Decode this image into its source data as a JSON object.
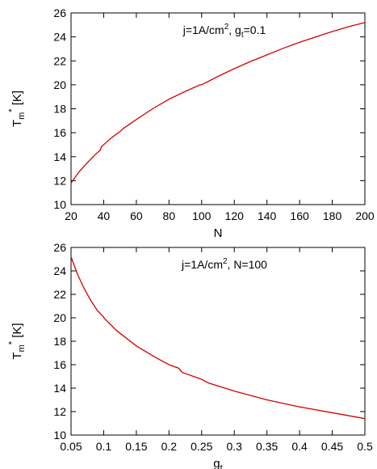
{
  "chart_data": [
    {
      "type": "line",
      "xlabel": "N",
      "ylabel": {
        "base": "T",
        "sub": "m",
        "sup": "*",
        "unit": "[K]"
      },
      "xlim": [
        20,
        200
      ],
      "ylim": [
        10,
        26
      ],
      "xticks": [
        20,
        40,
        60,
        80,
        100,
        120,
        140,
        160,
        180,
        200
      ],
      "yticks": [
        10,
        12,
        14,
        16,
        18,
        20,
        22,
        24,
        26
      ],
      "xtick_labels": [
        "20",
        "40",
        "60",
        "80",
        "100",
        "120",
        "140",
        "160",
        "180",
        "200"
      ],
      "ytick_labels": [
        "10",
        "12",
        "14",
        "16",
        "18",
        "20",
        "22",
        "24",
        "26"
      ],
      "annotation": {
        "pre": "j=1A/cm",
        "sup": "2",
        "mid": ", g",
        "sub": "t",
        "post": "=0.1"
      },
      "color": "#d40000",
      "series": [
        {
          "x": [
            20,
            25,
            30,
            35,
            38,
            38.5,
            40,
            45,
            50,
            52,
            60,
            70,
            80,
            90,
            99,
            100,
            110,
            120,
            130,
            140,
            150,
            160,
            170,
            180,
            190,
            200
          ],
          "y": [
            11.8,
            12.75,
            13.5,
            14.2,
            14.55,
            14.8,
            15.0,
            15.6,
            16.1,
            16.35,
            17.1,
            18.0,
            18.8,
            19.45,
            20.0,
            20.0,
            20.7,
            21.35,
            21.95,
            22.5,
            23.05,
            23.55,
            24.0,
            24.45,
            24.85,
            25.2
          ]
        }
      ]
    },
    {
      "type": "line",
      "xlabel": {
        "base": "g",
        "sub": "t"
      },
      "ylabel": {
        "base": "T",
        "sub": "m",
        "sup": "*",
        "unit": "[K]"
      },
      "xlim": [
        0.05,
        0.5
      ],
      "ylim": [
        10,
        26
      ],
      "xticks": [
        0.05,
        0.1,
        0.15,
        0.2,
        0.25,
        0.3,
        0.35,
        0.4,
        0.45,
        0.5
      ],
      "yticks": [
        10,
        12,
        14,
        16,
        18,
        20,
        22,
        24,
        26
      ],
      "xtick_labels": [
        "0.05",
        "0.1",
        "0.15",
        "0.2",
        "0.25",
        "0.3",
        "0.35",
        "0.4",
        "0.45",
        "0.5"
      ],
      "ytick_labels": [
        "10",
        "12",
        "14",
        "16",
        "18",
        "20",
        "22",
        "24",
        "26"
      ],
      "annotation": {
        "pre": "j=1A/cm",
        "sup": "2",
        "mid": ", N=100",
        "sub": "",
        "post": ""
      },
      "color": "#d40000",
      "series": [
        {
          "x": [
            0.05,
            0.06,
            0.07,
            0.08,
            0.09,
            0.1,
            0.101,
            0.12,
            0.15,
            0.18,
            0.2,
            0.215,
            0.22,
            0.25,
            0.26,
            0.3,
            0.35,
            0.4,
            0.45,
            0.5
          ],
          "y": [
            25.2,
            23.7,
            22.5,
            21.5,
            20.65,
            20.05,
            19.95,
            18.9,
            17.6,
            16.6,
            16.0,
            15.7,
            15.35,
            14.75,
            14.45,
            13.75,
            13.0,
            12.4,
            11.9,
            11.4
          ]
        }
      ]
    }
  ]
}
